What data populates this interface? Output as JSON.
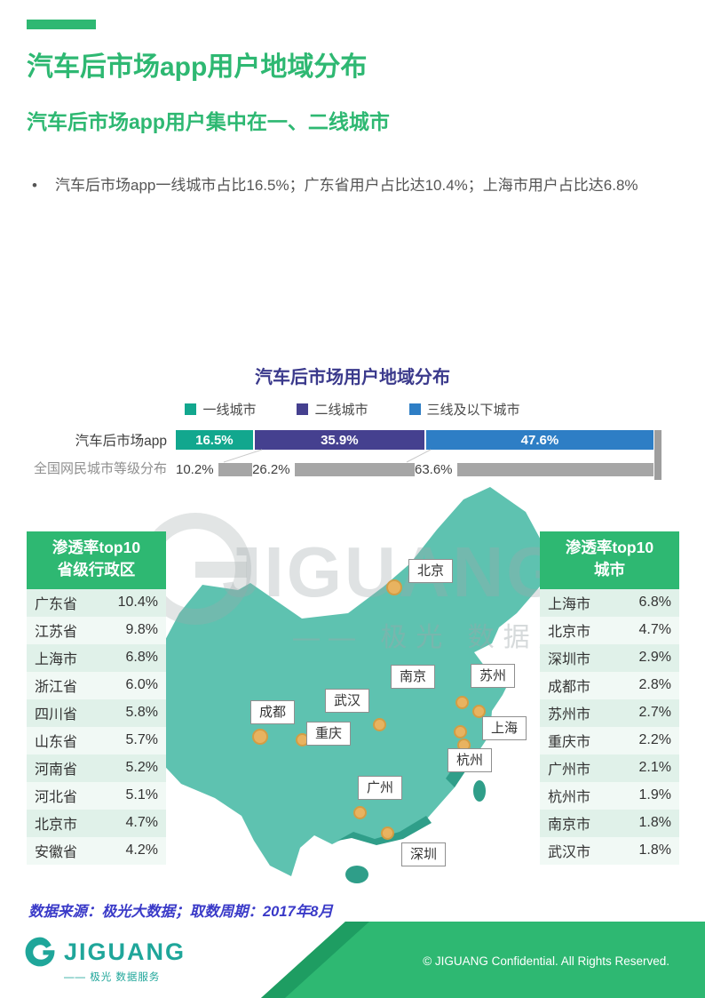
{
  "theme": {
    "green": "#2EB872",
    "title_purple": "#3B3A8C",
    "source_blue": "#3A3AC8",
    "logo_teal": "#1FA69A"
  },
  "page": {
    "title": "汽车后市场app用户地域分布",
    "subtitle": "汽车后市场app用户集中在一、二线城市",
    "bullet_marker": "•",
    "bullet": "汽车后市场app一线城市占比16.5%；广东省用户占比达10.4%；上海市用户占比达6.8%",
    "source_note": "数据来源：极光大数据；取数周期：2017年8月"
  },
  "chart_data": {
    "type": "bar",
    "variant": "horizontal-stacked",
    "title": "汽车后市场用户地域分布",
    "legend_position": "top",
    "xlim": [
      0,
      100
    ],
    "categories": [
      "汽车后市场app",
      "全国网民城市等级分布"
    ],
    "series": [
      {
        "name": "一线城市",
        "color": "#12A78E",
        "values": [
          16.5,
          10.2
        ]
      },
      {
        "name": "二线城市",
        "color": "#45408F",
        "values": [
          35.9,
          26.2
        ]
      },
      {
        "name": "三线及以下城市",
        "color": "#2E7EC5",
        "values": [
          47.6,
          63.6
        ]
      }
    ],
    "row2_color": "#A6A6A6",
    "value_labels": {
      "row1": [
        "16.5%",
        "35.9%",
        "47.6%"
      ],
      "row2": [
        "10.2%",
        "26.2%",
        "63.6%"
      ]
    }
  },
  "tables": {
    "left": {
      "title_line1": "渗透率top10",
      "title_line2": "省级行政区",
      "rows": [
        {
          "name": "广东省",
          "value": "10.4%"
        },
        {
          "name": "江苏省",
          "value": "9.8%"
        },
        {
          "name": "上海市",
          "value": "6.8%"
        },
        {
          "name": "浙江省",
          "value": "6.0%"
        },
        {
          "name": "四川省",
          "value": "5.8%"
        },
        {
          "name": "山东省",
          "value": "5.7%"
        },
        {
          "name": "河南省",
          "value": "5.2%"
        },
        {
          "name": "河北省",
          "value": "5.1%"
        },
        {
          "name": "北京市",
          "value": "4.7%"
        },
        {
          "name": "安徽省",
          "value": "4.2%"
        }
      ]
    },
    "right": {
      "title_line1": "渗透率top10",
      "title_line2": "城市",
      "rows": [
        {
          "name": "上海市",
          "value": "6.8%"
        },
        {
          "name": "北京市",
          "value": "4.7%"
        },
        {
          "name": "深圳市",
          "value": "2.9%"
        },
        {
          "name": "成都市",
          "value": "2.8%"
        },
        {
          "name": "苏州市",
          "value": "2.7%"
        },
        {
          "name": "重庆市",
          "value": "2.2%"
        },
        {
          "name": "广州市",
          "value": "2.1%"
        },
        {
          "name": "杭州市",
          "value": "1.9%"
        },
        {
          "name": "南京市",
          "value": "1.8%"
        },
        {
          "name": "武汉市",
          "value": "1.8%"
        }
      ]
    }
  },
  "map": {
    "colors": {
      "base": "#5EC2B0",
      "dark": "#2F9E89",
      "marker": "#F0B35C"
    },
    "cities": [
      {
        "name": "北京"
      },
      {
        "name": "南京"
      },
      {
        "name": "苏州"
      },
      {
        "name": "上海"
      },
      {
        "name": "杭州"
      },
      {
        "name": "武汉"
      },
      {
        "name": "成都"
      },
      {
        "name": "重庆"
      },
      {
        "name": "广州"
      },
      {
        "name": "深圳"
      }
    ]
  },
  "watermark": {
    "line1": "JIGUANG",
    "line2": "—— 极光 数据服务"
  },
  "footer": {
    "logo_text": "JIGUANG",
    "logo_subtext": "—— 极光 数据服务",
    "copyright": "© JIGUANG  Confidential. All Rights Reserved."
  }
}
